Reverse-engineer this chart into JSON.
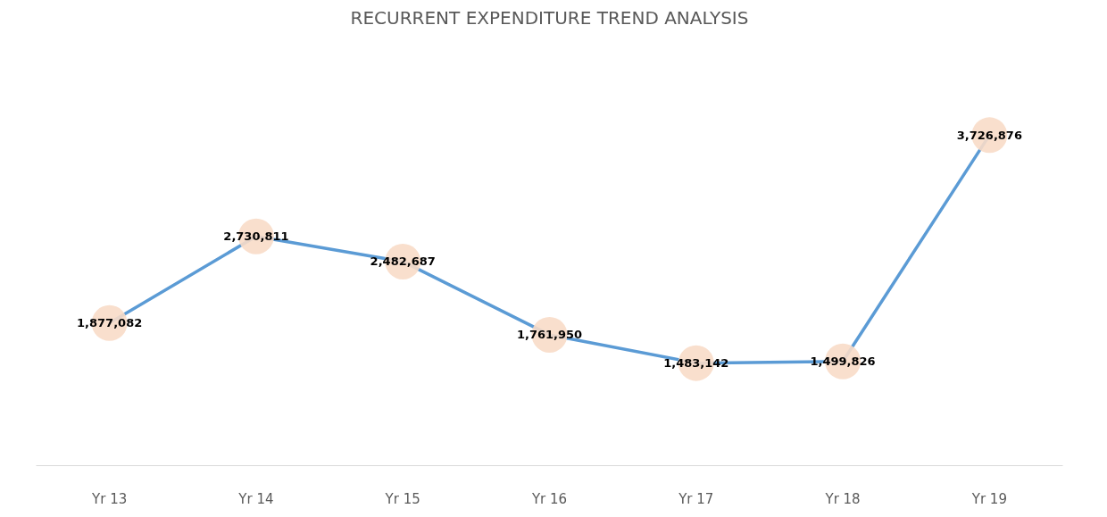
{
  "chart_data": {
    "type": "line",
    "title": "RECURRENT EXPENDITURE TREND ANALYSIS",
    "categories": [
      "Yr 13",
      "Yr 14",
      "Yr 15",
      "Yr 16",
      "Yr 17",
      "Yr 18",
      "Yr 19"
    ],
    "series": [
      {
        "color": "#5b9bd5",
        "values": [
          1877082,
          2730811,
          2482687,
          1761950,
          1483142,
          1499826,
          3726876
        ],
        "value_labels": [
          "1,877,082",
          "2,730,811",
          "2,482,687",
          "1,761,950",
          "1,483,142",
          "1,499,826",
          "3,726,876"
        ]
      }
    ],
    "marker": "circle",
    "grid": false
  }
}
